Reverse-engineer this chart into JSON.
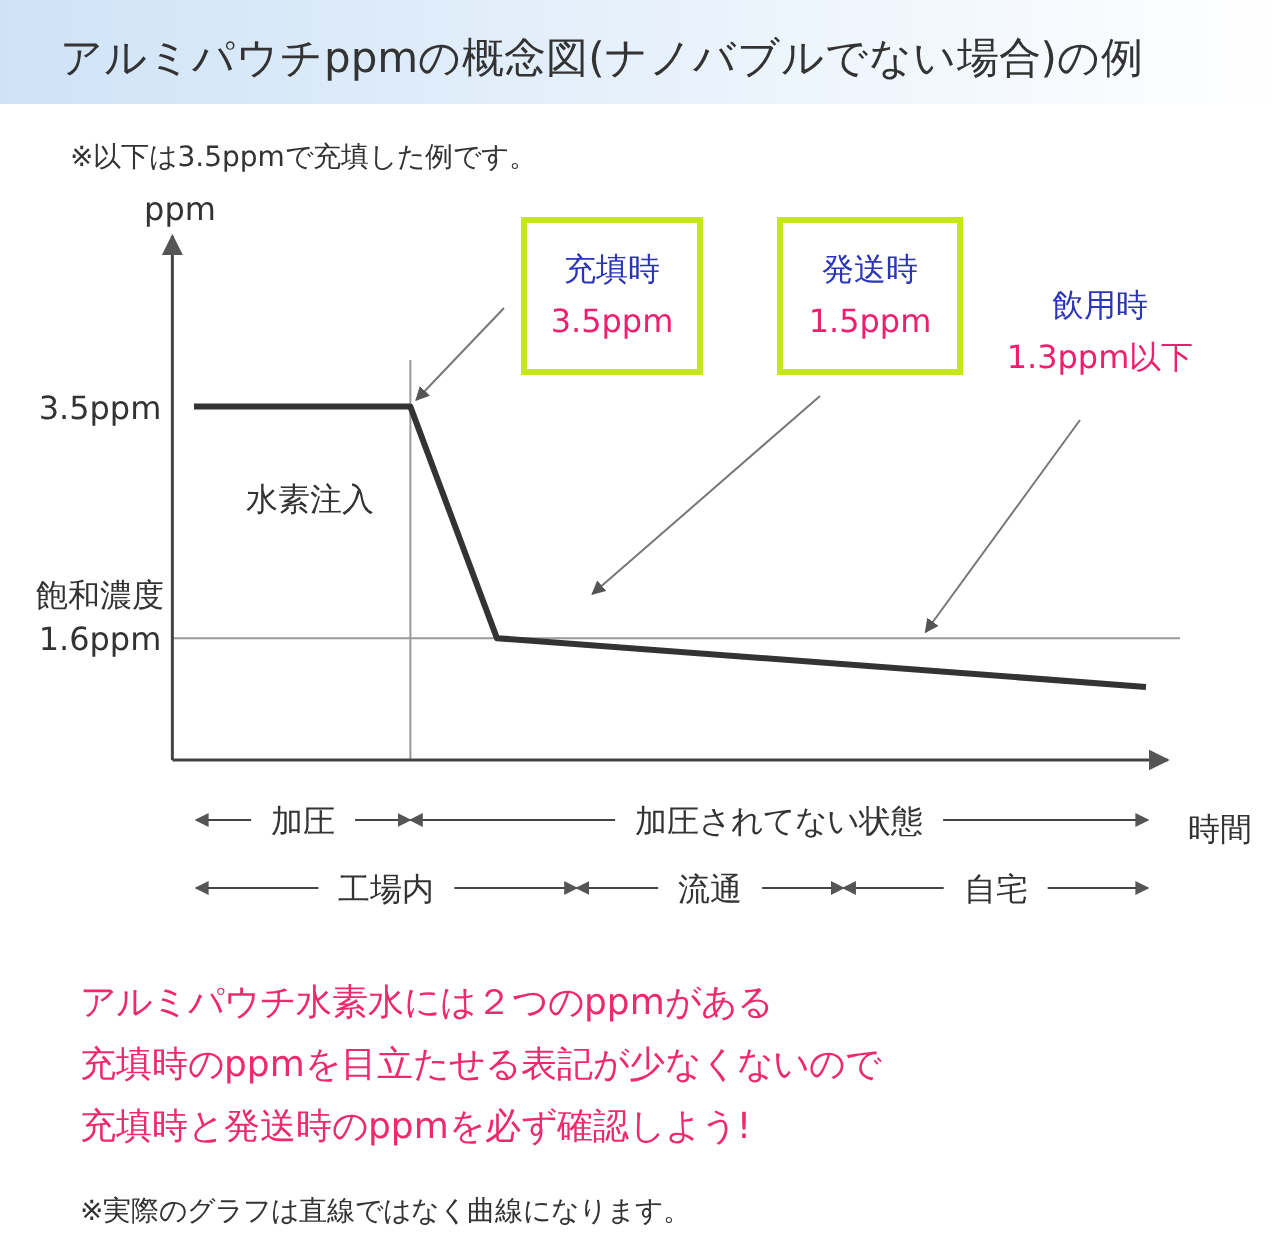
{
  "chart_data": {
    "type": "line",
    "title": "アルミパウチppmの概念図(ナノバブルでない場合)の例",
    "subtitle": "※以下は3.5ppmで充填した例です。",
    "ylabel": "ppm",
    "xlabel": "時間",
    "categories": [
      null,
      null,
      null,
      null,
      null,
      null,
      null,
      null,
      null,
      null,
      null,
      null,
      null,
      null,
      null,
      null,
      null,
      null,
      null,
      null,
      null,
      null,
      null
    ],
    "series": [
      {
        "color": "#333333",
        "values": [
          3.5,
          null,
          null,
          null,
          null,
          3.5,
          null,
          1.6,
          null,
          null,
          null,
          null,
          null,
          null,
          null,
          null,
          null,
          null,
          null,
          null,
          null,
          null,
          1.2
        ]
      }
    ],
    "ylim": [
      0.6,
      4.9
    ],
    "yticks": [
      {
        "value": 3.5,
        "label": "3.5ppm"
      },
      {
        "value": 1.6,
        "label": "1.6ppm"
      }
    ],
    "tick_labels": "y",
    "ref_lines": [
      {
        "axis": "y",
        "value": 1.6,
        "color": "#999999"
      }
    ],
    "annotations": [
      "充填時\n3.5ppm",
      "発送時\n1.5ppm",
      "飲用時\n1.3ppm以下",
      "水素注入",
      "飽和濃度",
      "加圧",
      "加圧されてない状態",
      "工場内",
      "流通",
      "自宅",
      "アルミパウチ水素水には２つのppmがある",
      "充填時のppmを目立たせる表記が少なくないので",
      "充填時と発送時のppmを必ず確認しよう!",
      "※実際のグラフは直線ではなく曲線になります。"
    ],
    "grid": false,
    "marker": "none",
    "line_style": "solid"
  }
}
